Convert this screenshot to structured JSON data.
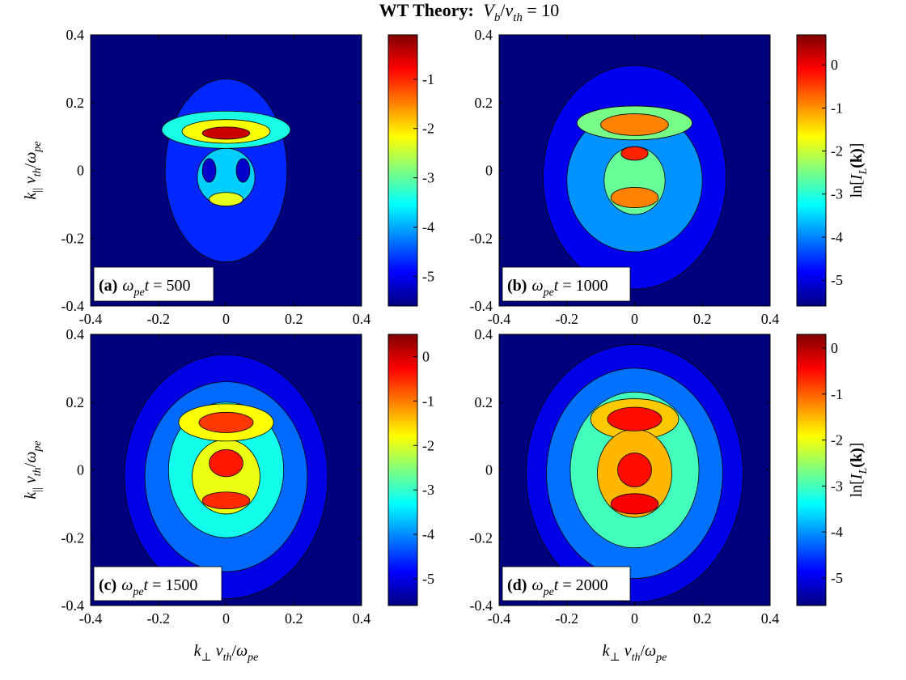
{
  "figure": {
    "title_bold": "WT Theory:",
    "title_math": {
      "v": "V",
      "b": "b",
      "slash": "/",
      "nu": "v",
      "th": "th",
      "eq": " = 10"
    }
  },
  "axes_labels": {
    "y": {
      "k": "k",
      "par": "||",
      "nu": " v",
      "th": "th",
      "slash": "/",
      "omega": "ω",
      "pe": "pe"
    },
    "x": {
      "k": "k",
      "perp": "⊥",
      "nu": " v",
      "th": "th",
      "slash": "/",
      "omega": "ω",
      "pe": "pe"
    },
    "cbar": {
      "ln": "ln[",
      "I": "I",
      "L": "L",
      "k": "(k)",
      "close": "]"
    }
  },
  "colors": {
    "colormap": "jet",
    "jet_stops": [
      "#00007f",
      "#0000ff",
      "#007fff",
      "#00ffff",
      "#7fff7f",
      "#ffff00",
      "#ff7f00",
      "#ff0000",
      "#7f0000"
    ],
    "contour_lines": "#000000"
  },
  "chart_data": [
    {
      "type": "heatmap",
      "panel": "a",
      "label": {
        "tag": "(a)",
        "omega": "ω",
        "pe": "pe",
        "t": "t",
        "eq": " = 500"
      },
      "xlim": [
        -0.4,
        0.4
      ],
      "ylim": [
        -0.4,
        0.4
      ],
      "xticks": [
        "-0.4",
        "-0.2",
        "0",
        "0.2",
        "0.4"
      ],
      "yticks": [
        "0.4",
        "0.2",
        "0",
        "-0.2",
        "-0.4"
      ],
      "colorbar": {
        "range": [
          -5.6,
          -0.1
        ],
        "ticks": [
          "-1",
          "-2",
          "-3",
          "-4",
          "-5"
        ],
        "tick_values": [
          -1,
          -2,
          -3,
          -4,
          -5
        ]
      },
      "features": [
        {
          "kind": "background",
          "x": 0,
          "y": 0,
          "sx": 1,
          "sy": 1,
          "value": -5.6
        },
        {
          "kind": "envelope",
          "x": 0,
          "y": 0.0,
          "sx": 0.18,
          "sy": 0.27,
          "value": -4.7
        },
        {
          "kind": "ridge",
          "x": 0,
          "y": 0.12,
          "sx": 0.19,
          "sy": 0.055,
          "value": -3.4
        },
        {
          "kind": "ridge",
          "x": 0,
          "y": 0.115,
          "sx": 0.13,
          "sy": 0.035,
          "value": -2.2
        },
        {
          "kind": "ridge",
          "x": 0,
          "y": 0.11,
          "sx": 0.07,
          "sy": 0.018,
          "value": -0.5
        },
        {
          "kind": "core",
          "x": 0,
          "y": -0.02,
          "sx": 0.085,
          "sy": 0.085,
          "value": -3.8
        },
        {
          "kind": "core",
          "x": 0,
          "y": -0.085,
          "sx": 0.05,
          "sy": 0.02,
          "value": -2.3
        },
        {
          "kind": "hole",
          "x": -0.05,
          "y": 0.0,
          "sx": 0.02,
          "sy": 0.035,
          "value": -5.2
        },
        {
          "kind": "hole",
          "x": 0.05,
          "y": 0.0,
          "sx": 0.02,
          "sy": 0.035,
          "value": -5.2
        }
      ]
    },
    {
      "type": "heatmap",
      "panel": "b",
      "label": {
        "tag": "(b)",
        "omega": "ω",
        "pe": "pe",
        "t": "t",
        "eq": " = 1000"
      },
      "xlim": [
        -0.4,
        0.4
      ],
      "ylim": [
        -0.4,
        0.4
      ],
      "xticks": [
        "-0.4",
        "-0.2",
        "0",
        "0.2",
        "0.4"
      ],
      "yticks": [
        "0.4",
        "0.2",
        "0",
        "-0.2",
        "-0.4"
      ],
      "colorbar": {
        "range": [
          -5.6,
          0.7
        ],
        "ticks": [
          "0",
          "-1",
          "-2",
          "-3",
          "-4",
          "-5"
        ],
        "tick_values": [
          0,
          -1,
          -2,
          -3,
          -4,
          -5
        ]
      },
      "features": [
        {
          "kind": "background",
          "x": 0,
          "y": 0,
          "sx": 1,
          "sy": 1,
          "value": -5.6
        },
        {
          "kind": "envelope",
          "x": 0,
          "y": -0.02,
          "sx": 0.27,
          "sy": 0.33,
          "value": -4.9
        },
        {
          "kind": "envelope",
          "x": 0,
          "y": -0.03,
          "sx": 0.2,
          "sy": 0.21,
          "value": -3.9
        },
        {
          "kind": "ridge",
          "x": 0,
          "y": 0.14,
          "sx": 0.17,
          "sy": 0.05,
          "value": -2.5
        },
        {
          "kind": "ridge",
          "x": 0,
          "y": 0.135,
          "sx": 0.1,
          "sy": 0.032,
          "value": -0.9
        },
        {
          "kind": "core",
          "x": 0,
          "y": -0.03,
          "sx": 0.09,
          "sy": 0.1,
          "value": -2.6
        },
        {
          "kind": "core",
          "x": 0,
          "y": -0.08,
          "sx": 0.07,
          "sy": 0.03,
          "value": -0.9
        },
        {
          "kind": "core",
          "x": 0,
          "y": 0.05,
          "sx": 0.04,
          "sy": 0.02,
          "value": -0.3
        }
      ]
    },
    {
      "type": "heatmap",
      "panel": "c",
      "label": {
        "tag": "(c)",
        "omega": "ω",
        "pe": "pe",
        "t": "t",
        "eq": " = 1500"
      },
      "xlim": [
        -0.4,
        0.4
      ],
      "ylim": [
        -0.4,
        0.4
      ],
      "xticks": [
        "-0.4",
        "-0.2",
        "0",
        "0.2",
        "0.4"
      ],
      "yticks": [
        "0.4",
        "0.2",
        "0",
        "-0.2",
        "-0.4"
      ],
      "colorbar": {
        "range": [
          -5.6,
          0.5
        ],
        "ticks": [
          "0",
          "-1",
          "-2",
          "-3",
          "-4",
          "-5"
        ],
        "tick_values": [
          0,
          -1,
          -2,
          -3,
          -4,
          -5
        ]
      },
      "features": [
        {
          "kind": "background",
          "x": 0,
          "y": 0,
          "sx": 1,
          "sy": 1,
          "value": -5.6
        },
        {
          "kind": "envelope",
          "x": 0,
          "y": -0.02,
          "sx": 0.3,
          "sy": 0.36,
          "value": -5.0
        },
        {
          "kind": "envelope",
          "x": 0,
          "y": -0.02,
          "sx": 0.24,
          "sy": 0.28,
          "value": -4.2
        },
        {
          "kind": "envelope",
          "x": 0,
          "y": 0.0,
          "sx": 0.17,
          "sy": 0.2,
          "value": -3.2
        },
        {
          "kind": "ridge",
          "x": 0,
          "y": 0.14,
          "sx": 0.14,
          "sy": 0.055,
          "value": -1.8
        },
        {
          "kind": "ridge",
          "x": 0,
          "y": 0.14,
          "sx": 0.08,
          "sy": 0.03,
          "value": -0.6
        },
        {
          "kind": "core",
          "x": 0,
          "y": -0.02,
          "sx": 0.1,
          "sy": 0.11,
          "value": -1.9
        },
        {
          "kind": "core",
          "x": 0,
          "y": 0.02,
          "sx": 0.05,
          "sy": 0.04,
          "value": -0.4
        },
        {
          "kind": "core",
          "x": 0,
          "y": -0.09,
          "sx": 0.07,
          "sy": 0.025,
          "value": -0.5
        }
      ]
    },
    {
      "type": "heatmap",
      "panel": "d",
      "label": {
        "tag": "(d)",
        "omega": "ω",
        "pe": "pe",
        "t": "t",
        "eq": " = 2000"
      },
      "xlim": [
        -0.4,
        0.4
      ],
      "ylim": [
        -0.4,
        0.4
      ],
      "xticks": [
        "-0.4",
        "-0.2",
        "0",
        "0.2",
        "0.4"
      ],
      "yticks": [
        "0.4",
        "0.2",
        "0",
        "-0.2",
        "-0.4"
      ],
      "colorbar": {
        "range": [
          -5.6,
          0.3
        ],
        "ticks": [
          "0",
          "-1",
          "-2",
          "-3",
          "-4",
          "-5"
        ],
        "tick_values": [
          0,
          -1,
          -2,
          -3,
          -4,
          -5
        ]
      },
      "features": [
        {
          "kind": "background",
          "x": 0,
          "y": 0,
          "sx": 1,
          "sy": 1,
          "value": -5.6
        },
        {
          "kind": "envelope",
          "x": 0,
          "y": -0.01,
          "sx": 0.32,
          "sy": 0.38,
          "value": -5.0
        },
        {
          "kind": "envelope",
          "x": 0,
          "y": -0.01,
          "sx": 0.26,
          "sy": 0.31,
          "value": -4.2
        },
        {
          "kind": "envelope",
          "x": 0,
          "y": 0.0,
          "sx": 0.19,
          "sy": 0.23,
          "value": -3.0
        },
        {
          "kind": "ridge",
          "x": 0,
          "y": 0.15,
          "sx": 0.13,
          "sy": 0.06,
          "value": -1.6
        },
        {
          "kind": "ridge",
          "x": 0,
          "y": 0.15,
          "sx": 0.08,
          "sy": 0.035,
          "value": -0.5
        },
        {
          "kind": "core",
          "x": 0,
          "y": -0.01,
          "sx": 0.11,
          "sy": 0.13,
          "value": -1.5
        },
        {
          "kind": "core",
          "x": 0,
          "y": 0.0,
          "sx": 0.05,
          "sy": 0.05,
          "value": -0.5
        },
        {
          "kind": "core",
          "x": 0,
          "y": -0.1,
          "sx": 0.07,
          "sy": 0.03,
          "value": -0.4
        }
      ]
    }
  ]
}
